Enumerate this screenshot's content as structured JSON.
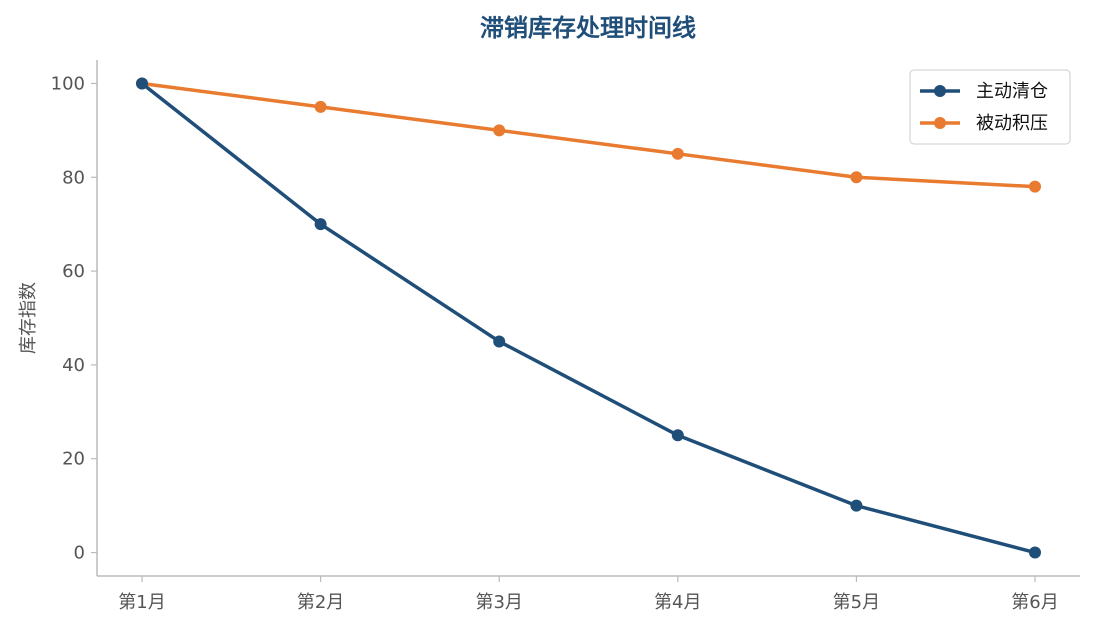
{
  "chart_data": {
    "type": "line",
    "title": "滞销库存处理时间线",
    "xlabel": "",
    "ylabel": "库存指数",
    "categories": [
      "第1月",
      "第2月",
      "第3月",
      "第4月",
      "第5月",
      "第6月"
    ],
    "series": [
      {
        "name": "主动清仓",
        "color": "#1f4e79",
        "values": [
          100,
          70,
          45,
          25,
          10,
          0
        ]
      },
      {
        "name": "被动积压",
        "color": "#e87b2f",
        "values": [
          100,
          95,
          90,
          85,
          80,
          78
        ]
      }
    ],
    "ylim": [
      -5,
      105
    ],
    "yticks": [
      0,
      20,
      40,
      60,
      80,
      100
    ],
    "legend": "top-right",
    "grid": false,
    "title_color": "#1f4e79",
    "axis_color": "#bbbbbb"
  }
}
